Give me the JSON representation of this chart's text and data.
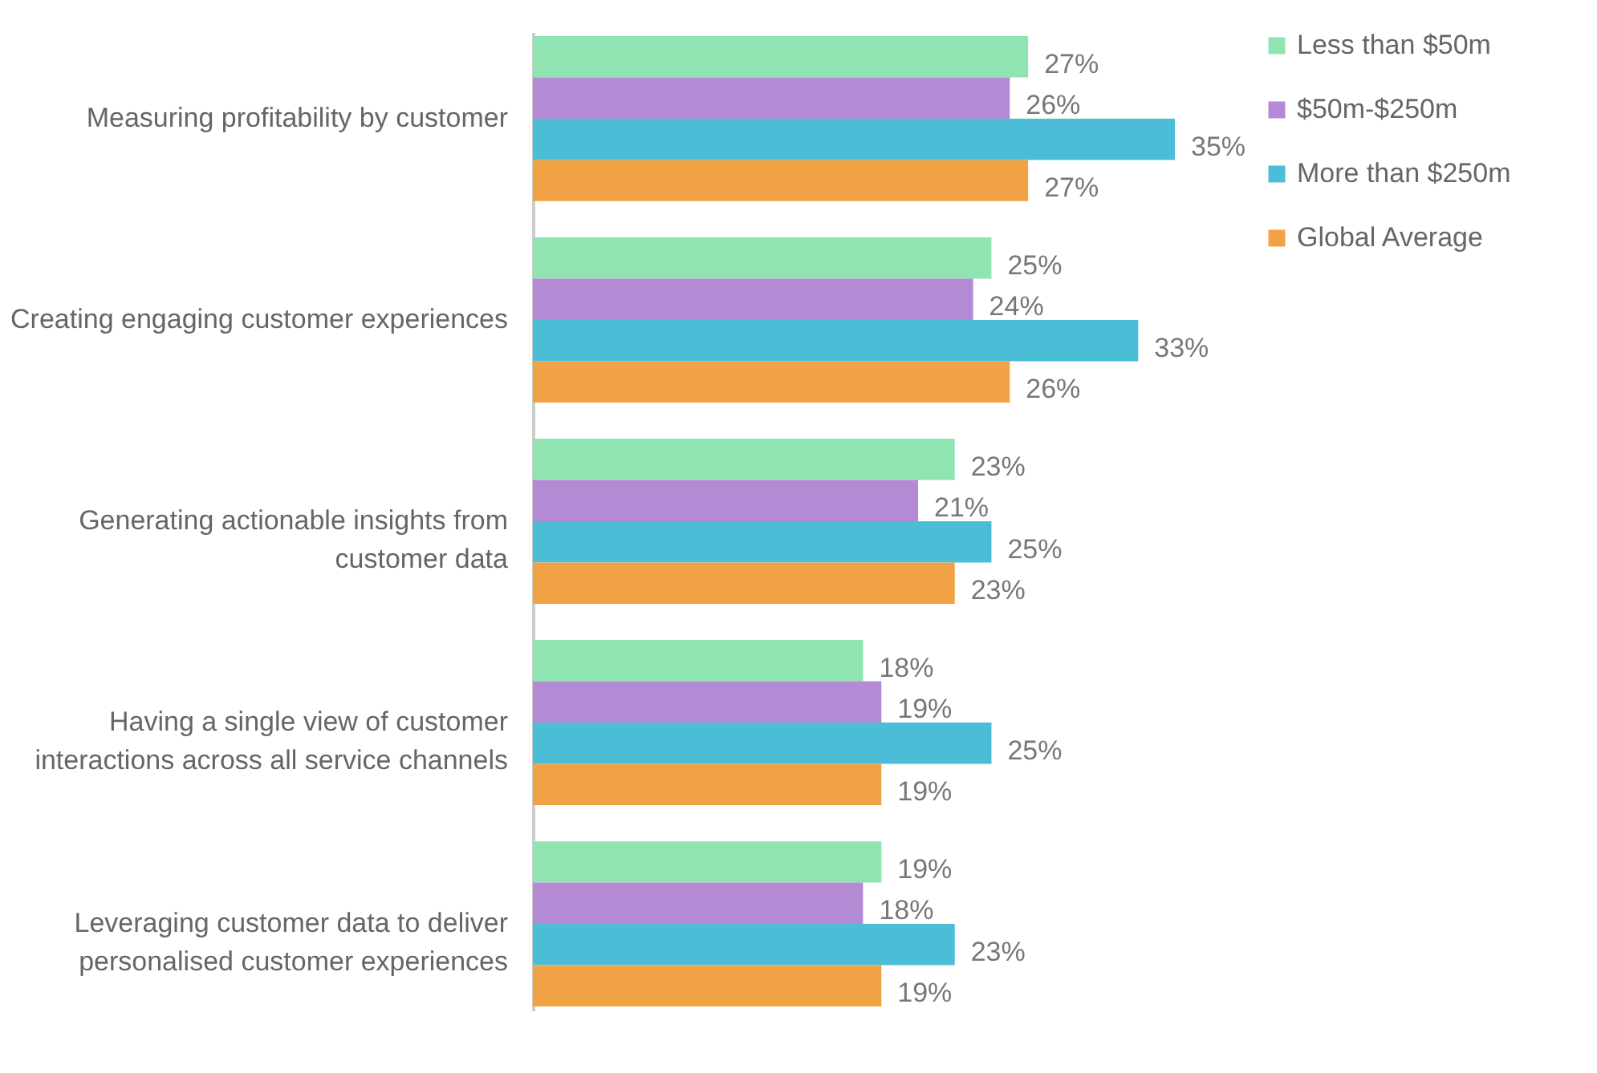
{
  "chart_data": {
    "type": "bar",
    "orientation": "horizontal",
    "legend": "right",
    "categories": [
      "Measuring  profitability by customer",
      "Creating engaging customer experiences",
      "Generating actionable insights from customer data",
      "Having a single view of customer interactions across all service channels",
      "Leveraging customer data to deliver personalised customer experiences"
    ],
    "series": [
      {
        "name": "Less than $50m",
        "color": "#8fe4b2",
        "values": [
          27,
          25,
          23,
          18,
          19
        ],
        "value_labels": [
          "27%",
          "25%",
          "23%",
          "18%",
          "19%"
        ]
      },
      {
        "name": "$50m-$250m",
        "color": "#b58ad4",
        "values": [
          26,
          24,
          21,
          19,
          18
        ],
        "value_labels": [
          "26%",
          "24%",
          "21%",
          "19%",
          "18%"
        ]
      },
      {
        "name": "More than $250m",
        "color": "#4bbdd6",
        "values": [
          35,
          33,
          25,
          25,
          23
        ],
        "value_labels": [
          "35%",
          "33%",
          "25%",
          "25%",
          "23%"
        ]
      },
      {
        "name": "Global Average",
        "color": "#f0a244",
        "values": [
          27,
          26,
          23,
          19,
          19
        ],
        "value_labels": [
          "27%",
          "26%",
          "23%",
          "19%",
          "19%"
        ]
      }
    ]
  }
}
